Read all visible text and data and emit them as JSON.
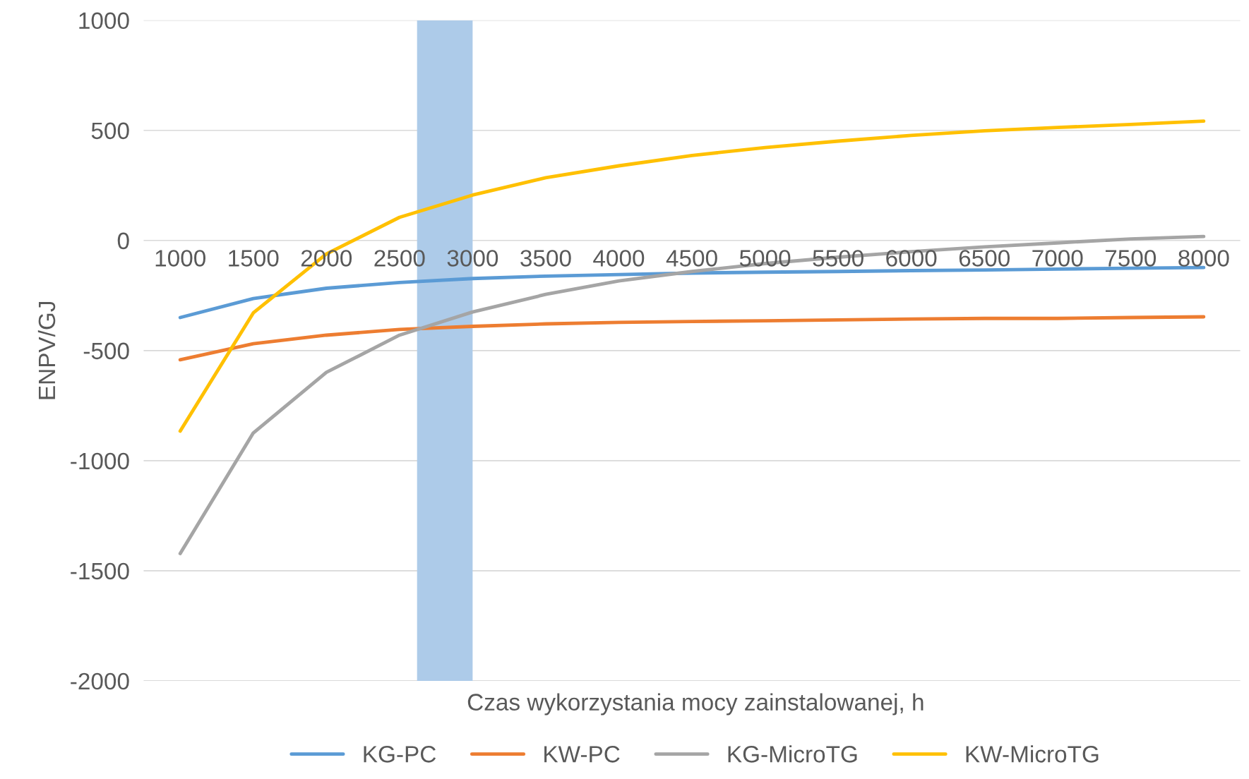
{
  "chart_data": {
    "type": "line",
    "xlabel": "Czas wykorzystania mocy zainstalowanej, h",
    "ylabel": "ENPV/GJ",
    "x": [
      1000,
      1500,
      2000,
      2500,
      3000,
      3500,
      4000,
      4500,
      5000,
      5500,
      6000,
      6500,
      7000,
      7500,
      8000
    ],
    "xlim": [
      750,
      8250
    ],
    "xticks": [
      1000,
      1500,
      2000,
      2500,
      3000,
      3500,
      4000,
      4500,
      5000,
      5500,
      6000,
      6500,
      7000,
      7500,
      8000
    ],
    "ylim": [
      -2000,
      1000
    ],
    "yticks": [
      -2000,
      -1500,
      -1000,
      -500,
      0,
      500,
      1000
    ],
    "series": [
      {
        "name": "KG-PC",
        "color": "#5b9bd5",
        "values": [
          -350,
          -264,
          -217,
          -191,
          -173,
          -162,
          -155,
          -148,
          -144,
          -141,
          -137,
          -134,
          -130,
          -126,
          -123
        ]
      },
      {
        "name": "KW-PC",
        "color": "#ed7d31",
        "values": [
          -542,
          -469,
          -430,
          -404,
          -390,
          -379,
          -372,
          -368,
          -365,
          -361,
          -357,
          -354,
          -354,
          -350,
          -347
        ]
      },
      {
        "name": "KG-MicroTG",
        "color": "#a5a5a5",
        "values": [
          -1422,
          -874,
          -599,
          -430,
          -325,
          -245,
          -184,
          -141,
          -105,
          -76,
          -51,
          -29,
          -11,
          7,
          18
        ]
      },
      {
        "name": "KW-MicroTG",
        "color": "#ffc000",
        "values": [
          -866,
          -329,
          -61,
          105,
          206,
          285,
          339,
          386,
          422,
          451,
          477,
          498,
          513,
          527,
          542
        ]
      }
    ],
    "bands": [
      {
        "axis": "x",
        "from": 2620,
        "to": 3000,
        "color": "#adcbe9"
      }
    ],
    "grid": "y",
    "legend": "bottom",
    "marker": "none",
    "line_style": "solid"
  }
}
